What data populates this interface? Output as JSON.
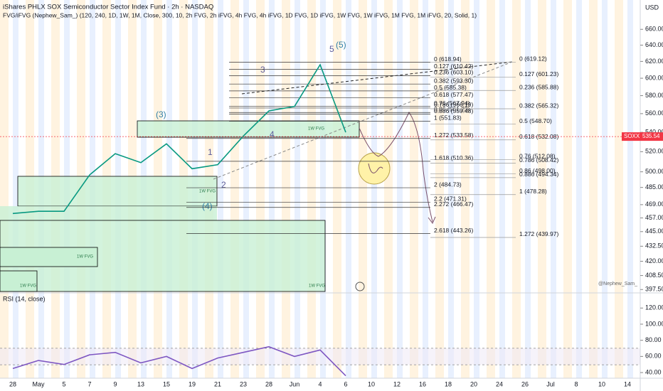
{
  "header": {
    "title": "iShares PHLX SOX Semiconductor Sector Index Fund · 2h · NASDAQ",
    "indicator": "FVG/iFVG (Nephew_Sam_) (120, 240, 1D, 1W, 1M, Close, 300, 10, 2h FVG, 2h iFVG, 4h FVG, 4h iFVG, 1D FVG, 1D iFVG, 1W FVG, 1W iFVG, 1M FVG, 1M iFVG, 20, Solid, 1)",
    "currency": "USD",
    "watermark": "@Nephew_Sam_"
  },
  "chart_data": [
    {
      "type": "line",
      "title": "SOXX",
      "color": "#089981",
      "log_scale": true,
      "categories": [
        "28",
        "May",
        "5",
        "7",
        "9",
        "13",
        "15",
        "19",
        "21",
        "23",
        "28",
        "Jun",
        "4",
        "6",
        "10",
        "12",
        "16",
        "18",
        "20",
        "24",
        "26",
        "Jul",
        "8",
        "10",
        "14"
      ],
      "values": [
        461,
        463,
        463,
        497,
        518,
        509,
        528,
        503,
        507,
        536,
        563,
        568,
        616,
        540,
        null,
        null,
        null,
        null,
        null,
        null,
        null,
        null,
        null,
        null,
        null
      ],
      "last_price": 535.54,
      "ylim": [
        396,
        694
      ],
      "yticks": [
        {
          "value": 660,
          "label": "660.00"
        },
        {
          "value": 640,
          "label": "640.00"
        },
        {
          "value": 620,
          "label": "620.00"
        },
        {
          "value": 600,
          "label": "600.00"
        },
        {
          "value": 580,
          "label": "580.00"
        },
        {
          "value": 560,
          "label": "560.00"
        },
        {
          "value": 540,
          "label": "540.00"
        },
        {
          "value": 520,
          "label": "520.00"
        },
        {
          "value": 500,
          "label": "500.00"
        },
        {
          "value": 485,
          "label": "485.00"
        },
        {
          "value": 469,
          "label": "469.00"
        },
        {
          "value": 457,
          "label": "457.00"
        },
        {
          "value": 445,
          "label": "445.00"
        },
        {
          "value": 432.5,
          "label": "432.50"
        },
        {
          "value": 420,
          "label": "420.00"
        },
        {
          "value": 408.5,
          "label": "408.50"
        },
        {
          "value": 397.5,
          "label": "397.50"
        }
      ],
      "fib_levels": [
        {
          "label": "0 (618.94)",
          "value": 618.94
        },
        {
          "label": "0.127 (610.42)",
          "value": 610.42
        },
        {
          "label": "0.236 (603.10)",
          "value": 603.1
        },
        {
          "label": "0.382 (593.30)",
          "value": 593.3
        },
        {
          "label": "0.5 (585.38)",
          "value": 585.38
        },
        {
          "label": "0.618 (577.47)",
          "value": 577.47
        },
        {
          "label": "0.76 (567.94)",
          "value": 567.94
        },
        {
          "label": "0.786 (566.19)",
          "value": 566.19
        },
        {
          "label": "0.86 (561.23)",
          "value": 561.23
        },
        {
          "label": "0.886 (559.48)",
          "value": 559.48
        },
        {
          "label": "1 (551.83)",
          "value": 551.83
        },
        {
          "label": "1.272 (533.58)",
          "value": 533.58
        },
        {
          "label": "1.618 (510.36)",
          "value": 510.36
        },
        {
          "label": "2 (484.73)",
          "value": 484.73
        },
        {
          "label": "2.2 (471.31)",
          "value": 471.31
        },
        {
          "label": "2.272 (466.47)",
          "value": 466.47
        },
        {
          "label": "2.618 (443.26)",
          "value": 443.26
        }
      ],
      "fib_levels_2": [
        {
          "label": "0 (619.12)",
          "value": 619.12
        },
        {
          "label": "0.127 (601.23)",
          "value": 601.23
        },
        {
          "label": "0.236 (585.88)",
          "value": 585.88
        },
        {
          "label": "0.382 (565.32)",
          "value": 565.32
        },
        {
          "label": "0.5 (548.70)",
          "value": 548.7
        },
        {
          "label": "0.618 (532.08)",
          "value": 532.08
        },
        {
          "label": "0.76 (512.08)",
          "value": 512.08
        },
        {
          "label": "0.786 (508.42)",
          "value": 508.42
        },
        {
          "label": "0.86 (498.00)",
          "value": 498.0
        },
        {
          "label": "0.886 (494.34)",
          "value": 494.34
        },
        {
          "label": "1 (478.28)",
          "value": 478.28
        },
        {
          "label": "1.272 (439.97)",
          "value": 439.97
        }
      ],
      "waves": [
        "5",
        "(5)",
        "3",
        "(3)",
        "1",
        "2",
        "(4)",
        "4"
      ],
      "fvg_labels": [
        "1W FVG",
        "1W FVG",
        "1W FVG",
        "1W FVG",
        "1W FVG"
      ]
    },
    {
      "type": "line",
      "title": "RSI (14, close)",
      "color": "#7e57c2",
      "values": [
        45,
        55,
        50,
        62,
        65,
        52,
        60,
        45,
        58,
        65,
        72,
        60,
        68,
        36,
        null,
        null,
        null,
        null,
        null,
        null,
        null,
        null,
        null,
        null,
        null
      ],
      "ylim": [
        33,
        137
      ],
      "yticks": [
        {
          "value": 120,
          "label": "120.00"
        },
        {
          "value": 100,
          "label": "100.00"
        },
        {
          "value": 80,
          "label": "80.00"
        },
        {
          "value": 60,
          "label": "60.00"
        },
        {
          "value": 40,
          "label": "40.00"
        }
      ]
    }
  ]
}
